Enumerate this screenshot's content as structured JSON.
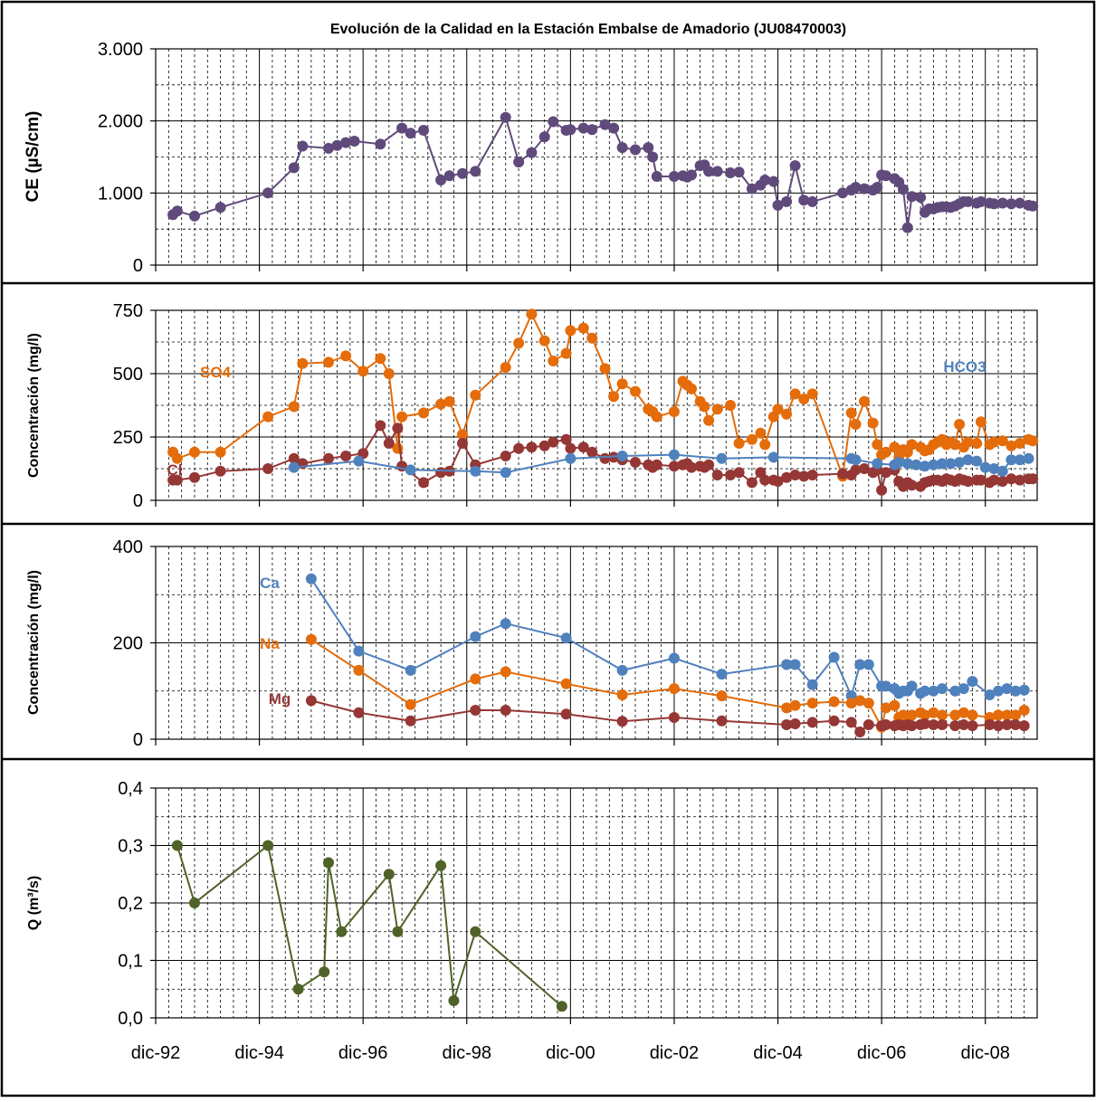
{
  "title": "Evolución de la Calidad en la Estación Embalse de Amadorio (JU08470003)",
  "colors": {
    "ce": "#604A7B",
    "so4": "#E46C0A",
    "cl": "#953735",
    "hco3": "#4F81BD",
    "ca": "#4F81BD",
    "na": "#E46C0A",
    "mg": "#953735",
    "q": "#4F6228"
  },
  "x_axis": {
    "start": "1992-12",
    "end": "2009-12",
    "tick_labels": [
      "dic-92",
      "dic-94",
      "dic-96",
      "dic-98",
      "dic-00",
      "dic-02",
      "dic-04",
      "dic-06",
      "dic-08"
    ]
  },
  "chart_data": [
    {
      "type": "line",
      "ylabel": "CE (µS/cm)",
      "ylim": [
        0,
        3000
      ],
      "yticks": [
        "0",
        "1.000",
        "2.000",
        "3.000"
      ],
      "grid": true,
      "series": [
        {
          "key": "ce",
          "x": [
            "1993-04",
            "1993-05",
            "1993-09",
            "1994-03",
            "1995-02",
            "1995-08",
            "1995-10",
            "1996-04",
            "1996-06",
            "1996-08",
            "1996-10",
            "1997-04",
            "1997-09",
            "1997-11",
            "1998-02",
            "1998-06",
            "1998-08",
            "1998-11",
            "1999-02",
            "1999-09",
            "1999-12",
            "2000-03",
            "2000-06",
            "2000-08",
            "2000-11",
            "2000-12",
            "2001-03",
            "2001-05",
            "2001-08",
            "2001-10",
            "2001-12",
            "2002-03",
            "2002-06",
            "2002-07",
            "2002-08",
            "2002-12",
            "2003-02",
            "2003-03",
            "2003-04",
            "2003-06",
            "2003-07",
            "2003-08",
            "2003-10",
            "2004-01",
            "2004-03",
            "2004-06",
            "2004-08",
            "2004-09",
            "2004-11",
            "2004-12",
            "2005-02",
            "2005-04",
            "2005-06",
            "2005-08",
            "2006-03",
            "2006-05",
            "2006-06",
            "2006-08",
            "2006-10",
            "2006-11",
            "2006-12",
            "2007-01",
            "2007-03",
            "2007-04",
            "2007-05",
            "2007-06",
            "2007-07",
            "2007-09",
            "2007-10",
            "2007-11",
            "2007-12",
            "2008-01",
            "2008-02",
            "2008-03",
            "2008-04",
            "2008-05",
            "2008-06",
            "2008-07",
            "2008-08",
            "2008-10",
            "2008-11",
            "2009-01",
            "2009-02",
            "2009-04",
            "2009-06",
            "2009-08",
            "2009-10",
            "2009-11"
          ],
          "y": [
            700,
            750,
            680,
            800,
            1000,
            1350,
            1650,
            1620,
            1660,
            1700,
            1720,
            1680,
            1900,
            1830,
            1870,
            1180,
            1240,
            1270,
            1300,
            2050,
            1430,
            1560,
            1780,
            1990,
            1870,
            1880,
            1900,
            1880,
            1950,
            1900,
            1630,
            1600,
            1630,
            1500,
            1230,
            1230,
            1240,
            1220,
            1250,
            1380,
            1390,
            1300,
            1300,
            1280,
            1290,
            1060,
            1110,
            1180,
            1160,
            830,
            880,
            1380,
            900,
            880,
            1000,
            1040,
            1080,
            1060,
            1040,
            1080,
            1250,
            1240,
            1200,
            1150,
            1050,
            520,
            950,
            940,
            730,
            780,
            780,
            800,
            810,
            810,
            800,
            820,
            850,
            880,
            880,
            860,
            880,
            860,
            850,
            860,
            850,
            860,
            830,
            820
          ]
        }
      ]
    },
    {
      "type": "line",
      "ylabel": "Concentración (mg/l)",
      "ylim": [
        0,
        750
      ],
      "yticks": [
        "0",
        "250",
        "500",
        "750"
      ],
      "grid": true,
      "series": [
        {
          "key": "so4",
          "name": "SO4",
          "x": [
            "1993-04",
            "1993-05",
            "1993-09",
            "1994-03",
            "1995-02",
            "1995-08",
            "1995-10",
            "1996-04",
            "1996-08",
            "1996-12",
            "1997-04",
            "1997-06",
            "1997-08",
            "1997-09",
            "1998-02",
            "1998-06",
            "1998-08",
            "1998-11",
            "1999-02",
            "1999-09",
            "1999-12",
            "2000-03",
            "2000-06",
            "2000-08",
            "2000-11",
            "2000-12",
            "2001-03",
            "2001-05",
            "2001-08",
            "2001-10",
            "2001-12",
            "2002-03",
            "2002-06",
            "2002-07",
            "2002-08",
            "2002-12",
            "2003-02",
            "2003-03",
            "2003-04",
            "2003-06",
            "2003-07",
            "2003-08",
            "2003-10",
            "2004-01",
            "2004-03",
            "2004-06",
            "2004-08",
            "2004-09",
            "2004-11",
            "2004-12",
            "2005-02",
            "2005-04",
            "2005-06",
            "2005-08",
            "2006-03",
            "2006-05",
            "2006-06",
            "2006-08",
            "2006-10",
            "2006-11",
            "2006-12",
            "2007-01",
            "2007-03",
            "2007-04",
            "2007-05",
            "2007-06",
            "2007-07",
            "2007-09",
            "2007-10",
            "2007-11",
            "2007-12",
            "2008-01",
            "2008-02",
            "2008-03",
            "2008-04",
            "2008-05",
            "2008-06",
            "2008-07",
            "2008-08",
            "2008-10",
            "2008-11",
            "2009-01",
            "2009-02",
            "2009-04",
            "2009-06",
            "2009-08",
            "2009-10",
            "2009-11"
          ],
          "y": [
            190,
            165,
            190,
            190,
            330,
            370,
            540,
            545,
            570,
            510,
            560,
            500,
            205,
            330,
            345,
            380,
            390,
            260,
            415,
            525,
            620,
            735,
            630,
            550,
            580,
            670,
            680,
            640,
            520,
            410,
            460,
            430,
            360,
            350,
            330,
            350,
            470,
            455,
            440,
            390,
            370,
            315,
            360,
            375,
            225,
            240,
            265,
            220,
            330,
            360,
            340,
            420,
            400,
            420,
            95,
            345,
            300,
            390,
            305,
            220,
            180,
            190,
            210,
            170,
            200,
            190,
            220,
            210,
            195,
            200,
            220,
            230,
            240,
            220,
            230,
            220,
            300,
            210,
            230,
            225,
            310,
            220,
            230,
            235,
            215,
            225,
            240,
            235
          ]
        },
        {
          "key": "cl",
          "name": "Cl",
          "x": [
            "1993-04",
            "1993-05",
            "1993-09",
            "1994-03",
            "1995-02",
            "1995-08",
            "1995-10",
            "1996-04",
            "1996-08",
            "1996-12",
            "1997-04",
            "1997-06",
            "1997-08",
            "1997-09",
            "1998-02",
            "1998-06",
            "1998-08",
            "1998-11",
            "1999-02",
            "1999-09",
            "1999-12",
            "2000-03",
            "2000-06",
            "2000-08",
            "2000-11",
            "2000-12",
            "2001-03",
            "2001-05",
            "2001-08",
            "2001-10",
            "2001-12",
            "2002-03",
            "2002-06",
            "2002-07",
            "2002-08",
            "2002-12",
            "2003-02",
            "2003-03",
            "2003-04",
            "2003-06",
            "2003-07",
            "2003-08",
            "2003-10",
            "2004-01",
            "2004-03",
            "2004-06",
            "2004-08",
            "2004-09",
            "2004-11",
            "2004-12",
            "2005-02",
            "2005-04",
            "2005-06",
            "2005-08",
            "2006-03",
            "2006-05",
            "2006-06",
            "2006-08",
            "2006-10",
            "2006-11",
            "2006-12",
            "2007-01",
            "2007-03",
            "2007-04",
            "2007-05",
            "2007-06",
            "2007-07",
            "2007-09",
            "2007-10",
            "2007-11",
            "2007-12",
            "2008-01",
            "2008-02",
            "2008-03",
            "2008-04",
            "2008-05",
            "2008-06",
            "2008-07",
            "2008-08",
            "2008-10",
            "2008-11",
            "2009-01",
            "2009-02",
            "2009-04",
            "2009-06",
            "2009-08",
            "2009-10",
            "2009-11"
          ],
          "y": [
            80,
            80,
            90,
            115,
            125,
            165,
            145,
            165,
            175,
            185,
            295,
            225,
            285,
            135,
            70,
            110,
            115,
            225,
            140,
            175,
            205,
            210,
            215,
            230,
            240,
            205,
            210,
            190,
            165,
            170,
            160,
            150,
            140,
            130,
            140,
            135,
            140,
            145,
            130,
            135,
            130,
            140,
            100,
            100,
            110,
            70,
            110,
            80,
            80,
            75,
            90,
            100,
            95,
            100,
            105,
            100,
            120,
            125,
            110,
            120,
            40,
            110,
            120,
            75,
            55,
            70,
            60,
            55,
            70,
            75,
            80,
            80,
            75,
            85,
            80,
            75,
            85,
            80,
            75,
            80,
            80,
            70,
            80,
            75,
            85,
            80,
            85,
            85
          ]
        },
        {
          "key": "hco3",
          "name": "HCO3",
          "x": [
            "1995-08",
            "1996-11",
            "1997-11",
            "1999-02",
            "1999-09",
            "2000-12",
            "2001-12",
            "2002-12",
            "2003-11",
            "2004-11",
            "2006-05",
            "2006-06",
            "2006-11",
            "2007-03",
            "2007-04",
            "2007-06",
            "2007-08",
            "2007-10",
            "2007-12",
            "2008-02",
            "2008-04",
            "2008-06",
            "2008-08",
            "2008-10",
            "2008-12",
            "2009-02",
            "2009-04",
            "2009-06",
            "2009-08",
            "2009-10"
          ],
          "y": [
            130,
            155,
            120,
            115,
            110,
            165,
            175,
            180,
            165,
            170,
            165,
            160,
            145,
            140,
            150,
            145,
            140,
            135,
            140,
            145,
            145,
            150,
            160,
            155,
            130,
            125,
            115,
            160,
            160,
            165
          ]
        }
      ]
    },
    {
      "type": "line",
      "ylabel": "Concentración (mg/l)",
      "ylim": [
        0,
        400
      ],
      "yticks": [
        "0",
        "200",
        "400"
      ],
      "grid": true,
      "series": [
        {
          "key": "ca",
          "name": "Ca",
          "x": [
            "1995-12",
            "1996-11",
            "1997-11",
            "1999-02",
            "1999-09",
            "2000-11",
            "2001-12",
            "2002-12",
            "2003-11",
            "2005-02",
            "2005-04",
            "2005-08",
            "2006-01",
            "2006-05",
            "2006-07",
            "2006-09",
            "2006-12",
            "2007-01",
            "2007-03",
            "2007-04",
            "2007-05",
            "2007-06",
            "2007-07",
            "2007-09",
            "2007-10",
            "2007-12",
            "2008-02",
            "2008-05",
            "2008-07",
            "2008-09",
            "2009-01",
            "2009-03",
            "2009-05",
            "2009-07",
            "2009-09"
          ],
          "y": [
            333,
            183,
            143,
            213,
            240,
            210,
            143,
            168,
            135,
            155,
            155,
            113,
            170,
            90,
            155,
            155,
            110,
            110,
            105,
            95,
            100,
            100,
            110,
            95,
            100,
            100,
            105,
            100,
            105,
            120,
            92,
            100,
            105,
            100,
            102
          ]
        },
        {
          "key": "na",
          "name": "Na",
          "x": [
            "1995-12",
            "1996-11",
            "1997-11",
            "1999-02",
            "1999-09",
            "2000-11",
            "2001-12",
            "2002-12",
            "2003-11",
            "2005-02",
            "2005-04",
            "2005-08",
            "2006-01",
            "2006-05",
            "2006-07",
            "2006-09",
            "2006-12",
            "2007-01",
            "2007-03",
            "2007-04",
            "2007-05",
            "2007-06",
            "2007-07",
            "2007-09",
            "2007-10",
            "2007-12",
            "2008-02",
            "2008-05",
            "2008-07",
            "2008-09",
            "2009-01",
            "2009-03",
            "2009-05",
            "2009-07",
            "2009-09"
          ],
          "y": [
            207,
            143,
            72,
            125,
            140,
            115,
            92,
            105,
            90,
            65,
            70,
            75,
            78,
            75,
            80,
            75,
            25,
            65,
            70,
            45,
            50,
            45,
            50,
            55,
            50,
            55,
            50,
            50,
            55,
            50,
            45,
            50,
            50,
            50,
            60
          ]
        },
        {
          "key": "mg",
          "name": "Mg",
          "x": [
            "1995-12",
            "1996-11",
            "1997-11",
            "1999-02",
            "1999-09",
            "2000-11",
            "2001-12",
            "2002-12",
            "2003-11",
            "2005-02",
            "2005-04",
            "2005-08",
            "2006-01",
            "2006-05",
            "2006-07",
            "2006-09",
            "2006-12",
            "2007-01",
            "2007-03",
            "2007-04",
            "2007-05",
            "2007-06",
            "2007-07",
            "2007-09",
            "2007-10",
            "2007-12",
            "2008-02",
            "2008-05",
            "2008-07",
            "2008-09",
            "2009-01",
            "2009-03",
            "2009-05",
            "2009-07",
            "2009-09"
          ],
          "y": [
            80,
            55,
            38,
            60,
            60,
            52,
            37,
            45,
            38,
            30,
            32,
            35,
            38,
            35,
            15,
            30,
            28,
            30,
            28,
            30,
            28,
            30,
            28,
            30,
            32,
            30,
            30,
            28,
            30,
            28,
            30,
            28,
            30,
            30,
            28
          ]
        }
      ]
    },
    {
      "type": "line",
      "ylabel": "Q (m³/s)",
      "ylim": [
        0,
        0.4
      ],
      "yticks": [
        "0,0",
        "0,1",
        "0,2",
        "0,3",
        "0,4"
      ],
      "grid": true,
      "series": [
        {
          "key": "q",
          "x": [
            "1993-05",
            "1993-09",
            "1995-02",
            "1995-09",
            "1996-03",
            "1996-04",
            "1996-07",
            "1997-06",
            "1997-08",
            "1998-06",
            "1998-09",
            "1999-02",
            "2000-10"
          ],
          "y": [
            0.3,
            0.2,
            0.3,
            0.05,
            0.08,
            0.27,
            0.15,
            0.25,
            0.15,
            0.265,
            0.03,
            0.15,
            0.02
          ]
        }
      ]
    }
  ]
}
